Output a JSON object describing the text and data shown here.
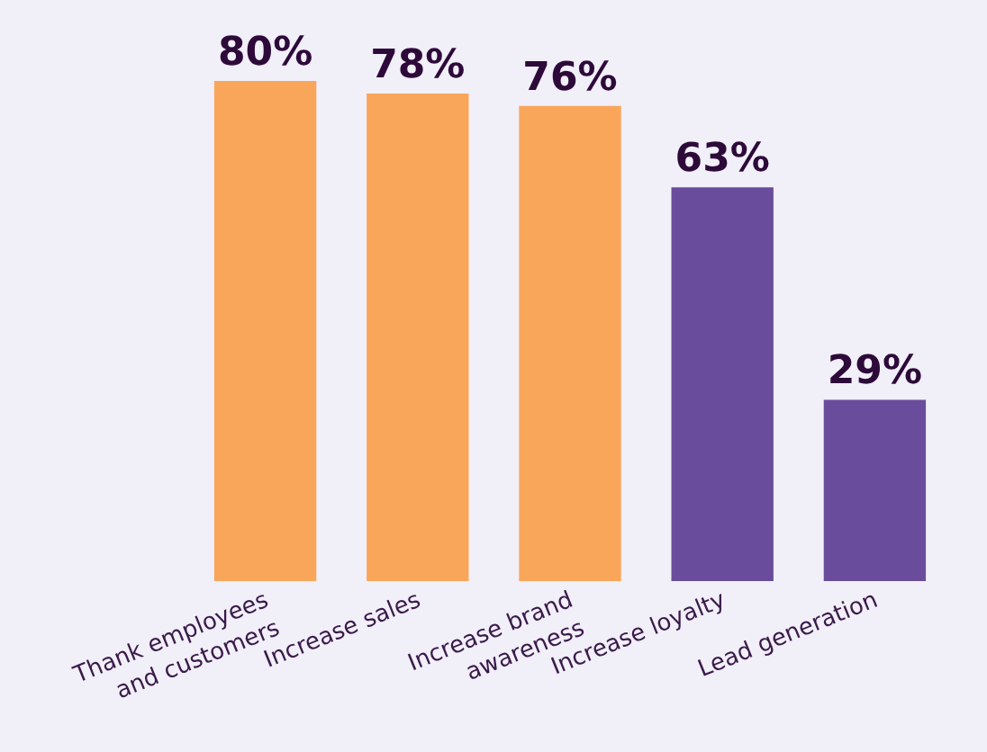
{
  "chart_data": {
    "type": "bar",
    "categories": [
      "Thank employees\nand customers",
      "Increase sales",
      "Increase brand\nawareness",
      "Increase loyalty",
      "Lead generation"
    ],
    "values": [
      80,
      78,
      76,
      63,
      29
    ],
    "value_labels": [
      "80%",
      "78%",
      "76%",
      "63%",
      "29%"
    ],
    "colors": [
      "#f9a65a",
      "#f9a65a",
      "#f9a65a",
      "#6a4c9c",
      "#6a4c9c"
    ]
  }
}
